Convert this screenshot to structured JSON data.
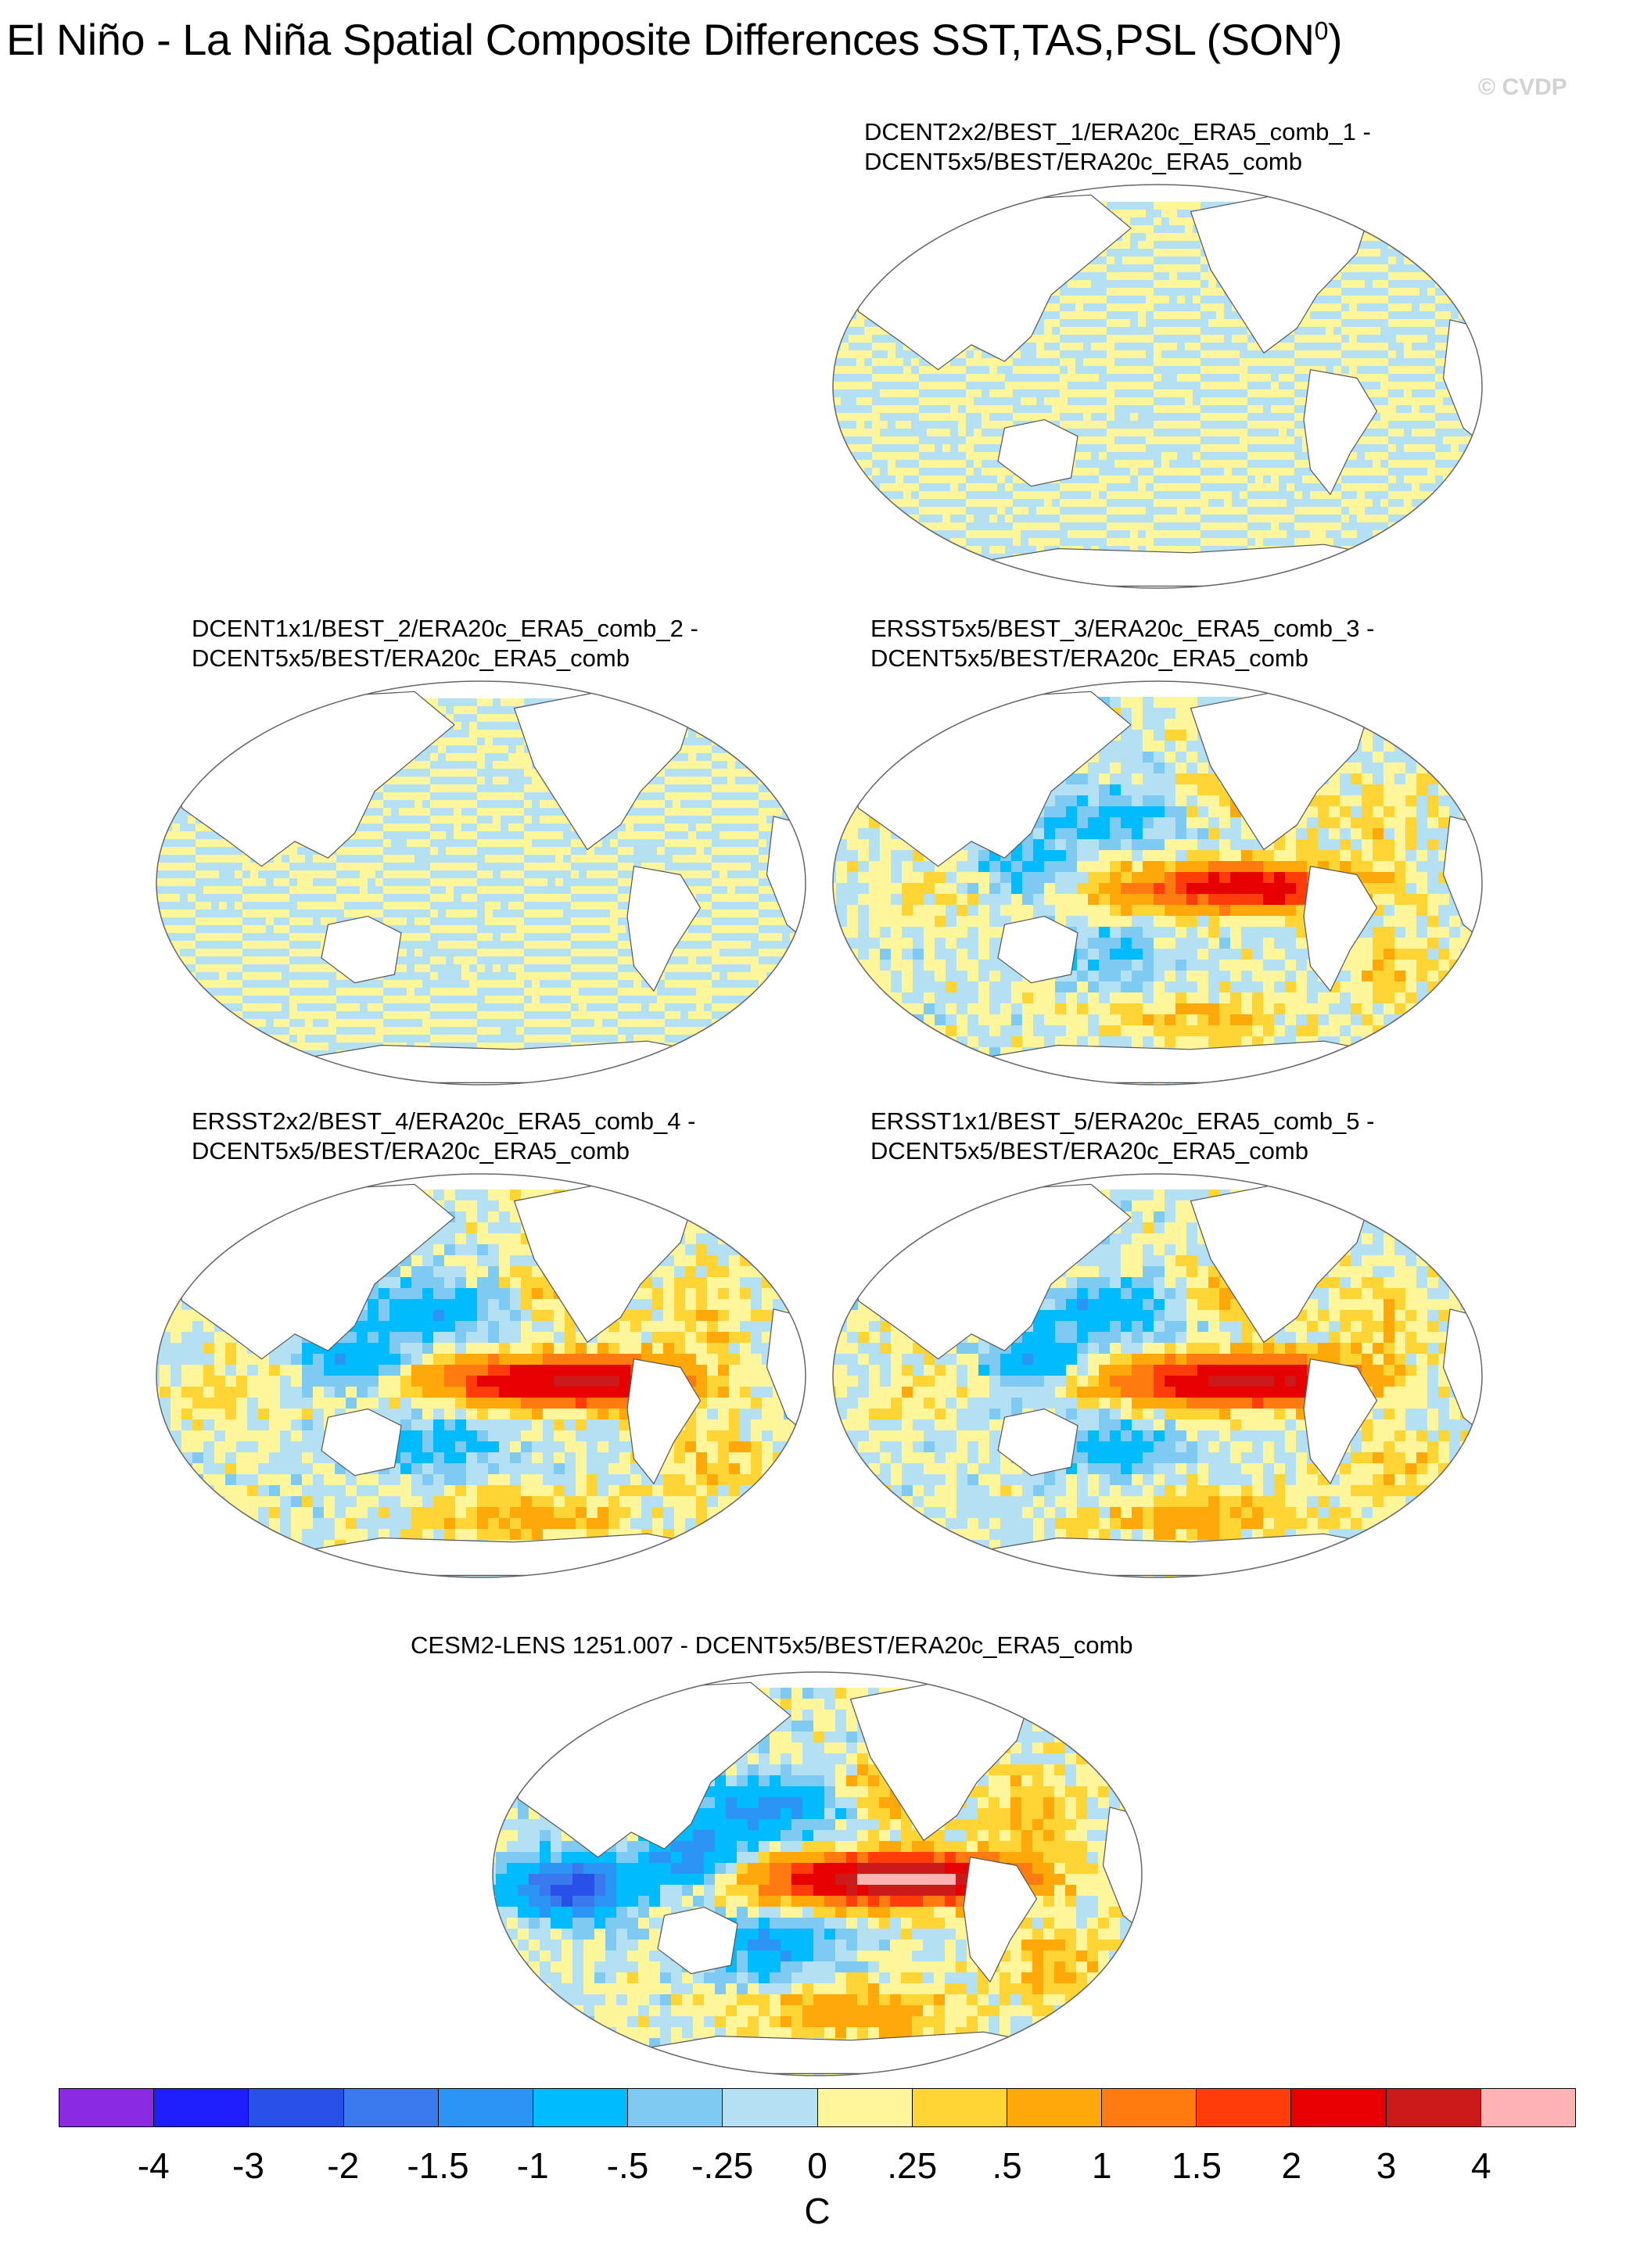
{
  "title": {
    "text": "El Niño - La Niña Spatial Composite Differences SST,TAS,PSL (SON",
    "superscript": "0",
    "closing": ")"
  },
  "credit": "© CVDP",
  "panels": [
    {
      "title_line1": "DCENT2x2/BEST_1/ERA20c_ERA5_comb_1 -",
      "title_line2": "DCENT5x5/BEST/ERA20c_ERA5_comb",
      "pattern": "striped"
    },
    {
      "title_line1": "DCENT1x1/BEST_2/ERA20c_ERA5_comb_2 -",
      "title_line2": "DCENT5x5/BEST/ERA20c_ERA5_comb",
      "pattern": "striped"
    },
    {
      "title_line1": "ERSST5x5/BEST_3/ERA20c_ERA5_comb_3 -",
      "title_line2": "DCENT5x5/BEST/ERA20c_ERA5_comb",
      "pattern": "enso_weak"
    },
    {
      "title_line1": "ERSST2x2/BEST_4/ERA20c_ERA5_comb_4 -",
      "title_line2": "DCENT5x5/BEST/ERA20c_ERA5_comb",
      "pattern": "enso_moderate"
    },
    {
      "title_line1": "ERSST1x1/BEST_5/ERA20c_ERA5_comb_5 -",
      "title_line2": "DCENT5x5/BEST/ERA20c_ERA5_comb",
      "pattern": "enso_moderate"
    },
    {
      "title_line1": "CESM2-LENS 1251.007 - DCENT5x5/BEST/ERA20c_ERA5_comb",
      "title_line2": "",
      "pattern": "enso_strong"
    }
  ],
  "colorbar": {
    "colors": [
      "#8a2be2",
      "#1e1eff",
      "#2850e6",
      "#3a78ee",
      "#2b95f5",
      "#00bcff",
      "#7ecaf3",
      "#b4e0f4",
      "#fff59a",
      "#ffd535",
      "#ffa80a",
      "#ff7b12",
      "#ff3c0a",
      "#e60000",
      "#cc1a1a",
      "#ffb3b3"
    ],
    "tick_labels": [
      "-4",
      "-3",
      "-2",
      "-1.5",
      "-1",
      "-.5",
      "-.25",
      "0",
      ".25",
      ".5",
      "1",
      "1.5",
      "2",
      "3",
      "4"
    ],
    "units": "C"
  }
}
